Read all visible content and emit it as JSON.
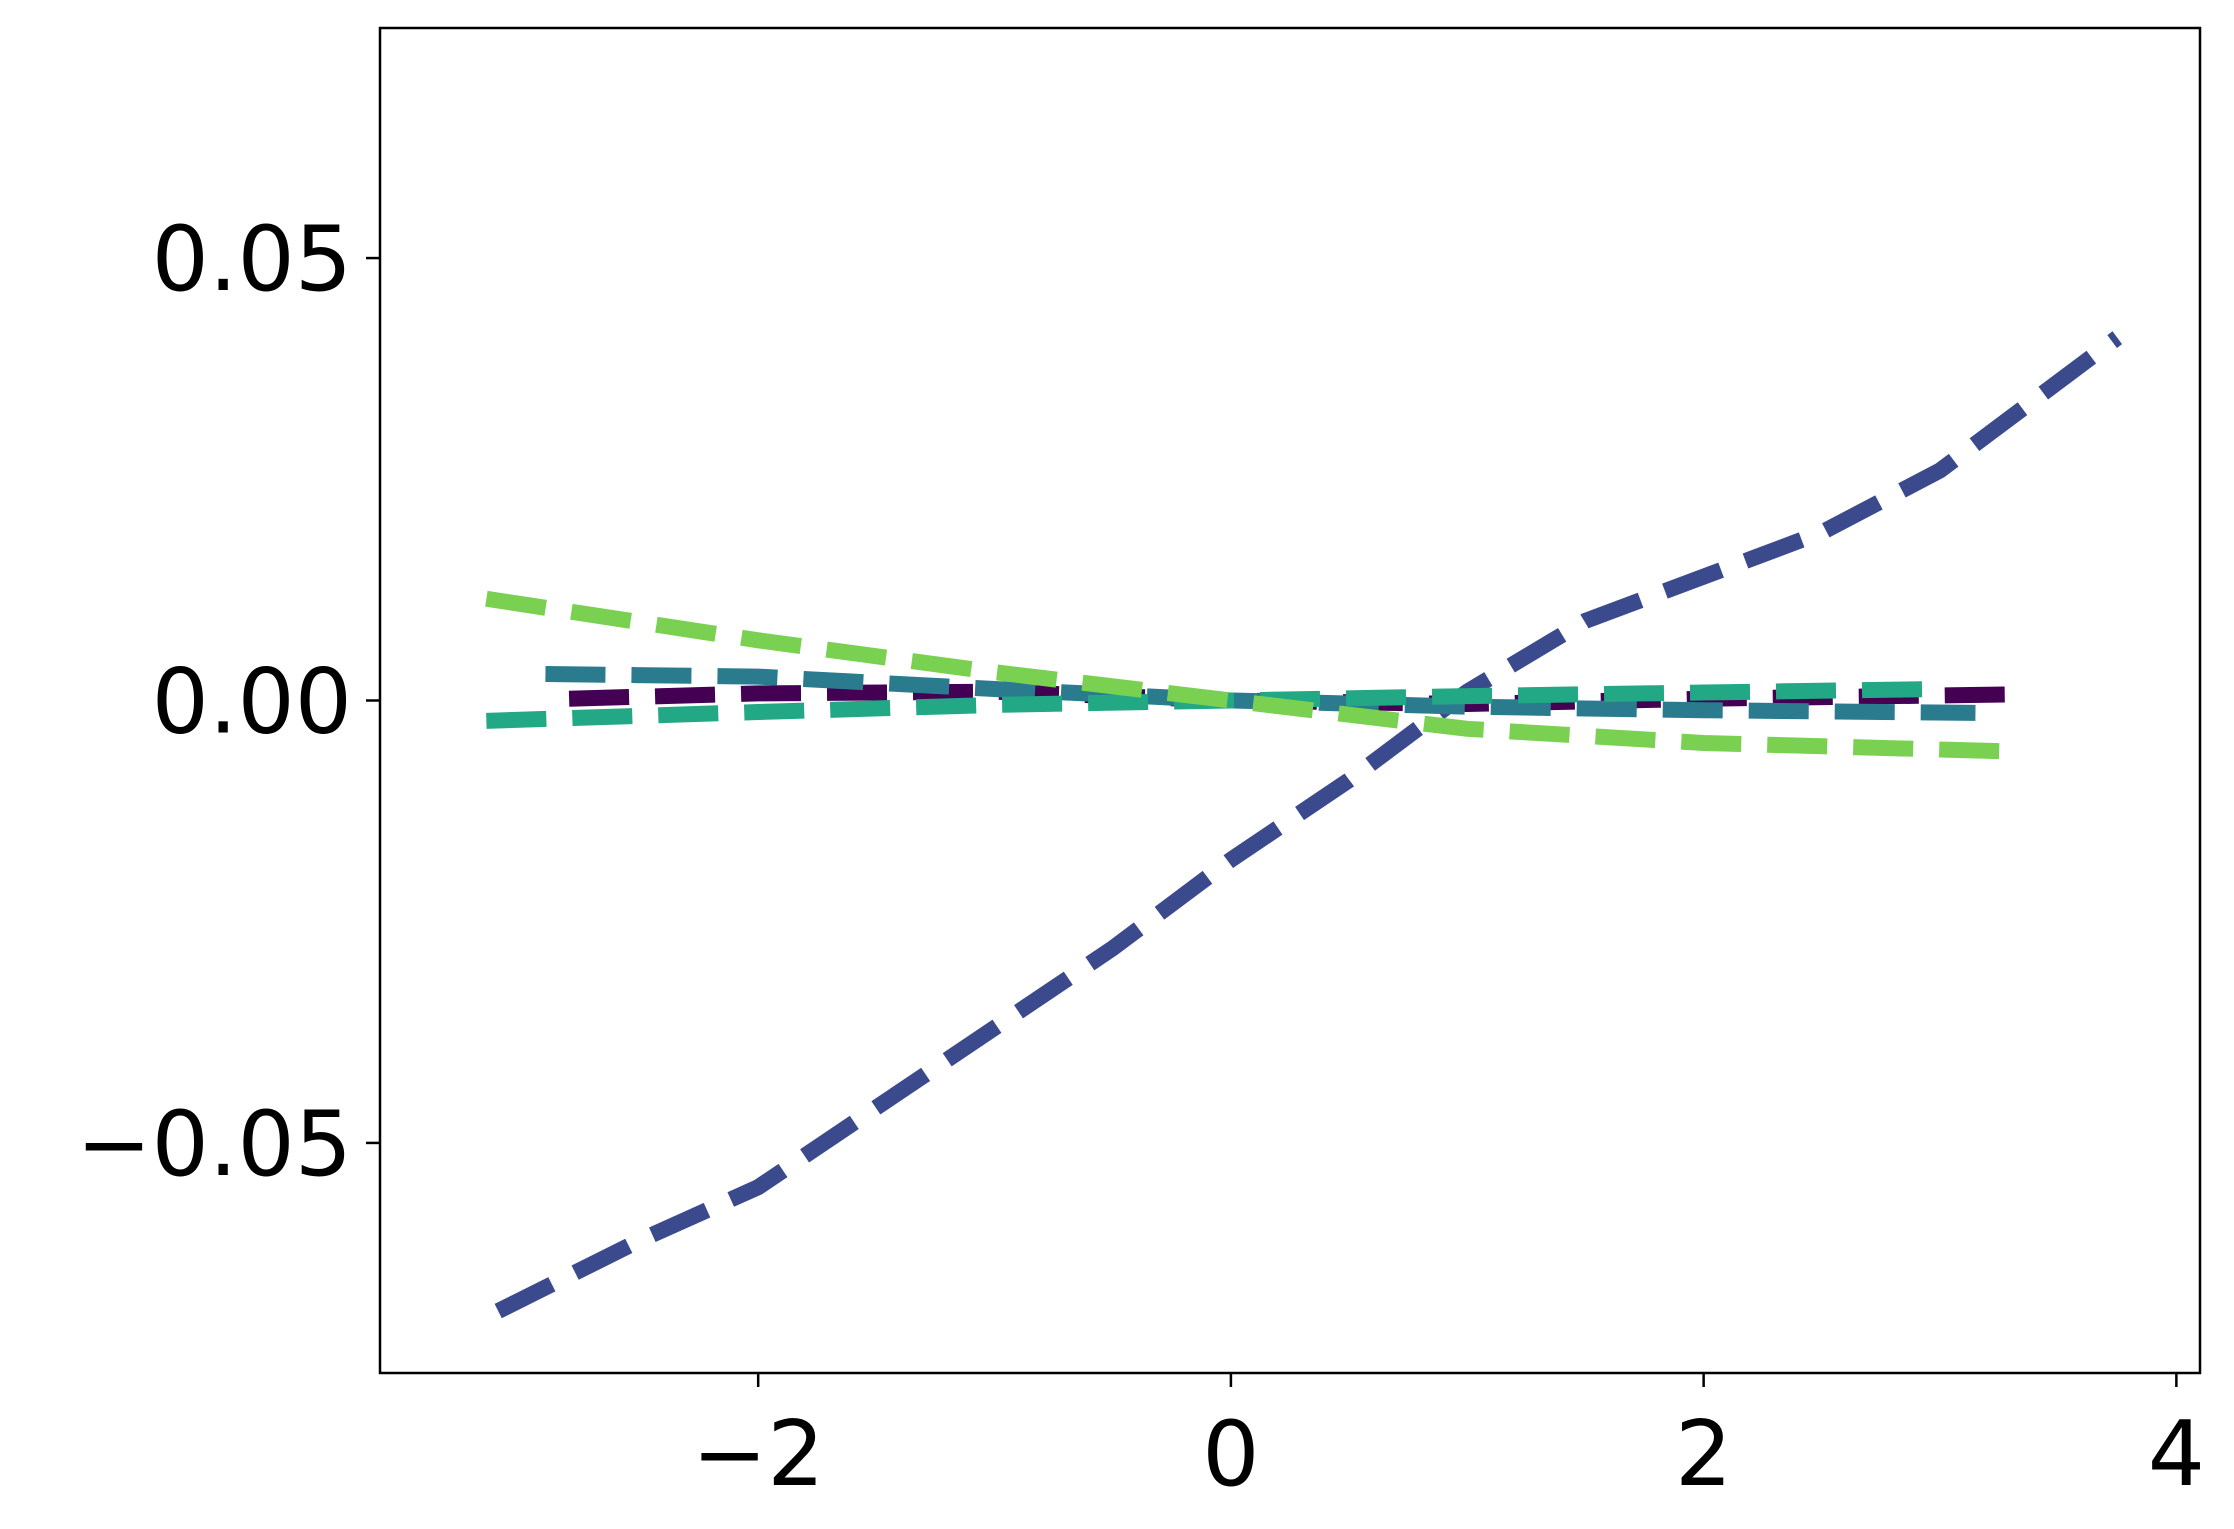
{
  "chart_data": {
    "type": "line",
    "title": "",
    "xlabel": "",
    "ylabel": "",
    "xlim": [
      -3.6,
      4.1
    ],
    "ylim": [
      -0.076,
      0.076
    ],
    "xticks": [
      -2,
      0,
      2,
      4
    ],
    "xtick_labels": [
      "−2",
      "0",
      "2",
      "4"
    ],
    "yticks": [
      -0.05,
      0.0,
      0.05
    ],
    "ytick_labels": [
      "−0.05",
      "0.00",
      "0.05"
    ],
    "grid": false,
    "legend": "none",
    "line_style": "dashed",
    "series": [
      {
        "color": "#440154",
        "x": [
          -2.8,
          -2.0,
          -1.0,
          0.0,
          1.0,
          2.0,
          3.35
        ],
        "y": [
          0.0002,
          0.0008,
          0.001,
          0.0,
          -0.0004,
          0.0002,
          0.0007
        ]
      },
      {
        "color": "#3b4a8c",
        "x": [
          -3.1,
          -2.5,
          -2.0,
          -1.5,
          -1.0,
          -0.5,
          0.0,
          0.5,
          1.0,
          1.5,
          2.0,
          2.5,
          3.0,
          3.75
        ],
        "y": [
          -0.069,
          -0.061,
          -0.055,
          -0.046,
          -0.037,
          -0.028,
          -0.018,
          -0.009,
          0.001,
          0.009,
          0.014,
          0.019,
          0.026,
          0.041
        ]
      },
      {
        "color": "#2a7b8e",
        "x": [
          -2.9,
          -2.0,
          -1.0,
          0.0,
          1.0,
          2.0,
          3.15
        ],
        "y": [
          0.003,
          0.0027,
          0.0013,
          0.0,
          -0.0007,
          -0.0011,
          -0.0014
        ]
      },
      {
        "color": "#22a884",
        "x": [
          -3.15,
          -2.0,
          -1.0,
          0.0,
          1.0,
          2.0,
          3.0
        ],
        "y": [
          -0.0023,
          -0.0013,
          -0.0005,
          0.0,
          0.0005,
          0.0009,
          0.0013
        ]
      },
      {
        "color": "#7ad151",
        "x": [
          -3.15,
          -2.0,
          -1.0,
          0.0,
          1.0,
          2.0,
          3.35
        ],
        "y": [
          0.0115,
          0.0068,
          0.0032,
          0.0,
          -0.0032,
          -0.0048,
          -0.0058
        ]
      }
    ]
  }
}
